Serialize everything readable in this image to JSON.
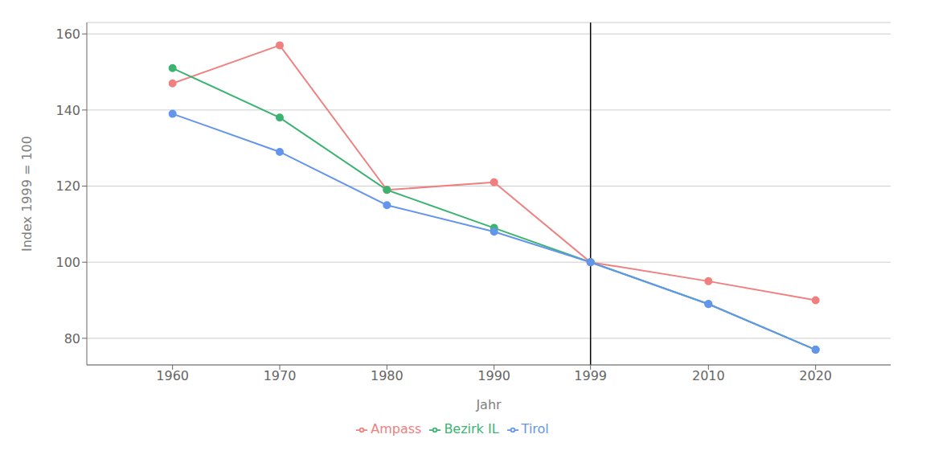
{
  "chart_data": {
    "type": "line",
    "x": [
      1960,
      1970,
      1980,
      1990,
      1999,
      2010,
      2020
    ],
    "series": [
      {
        "name": "Ampass",
        "color": "#F08080",
        "values": [
          147,
          157,
          119,
          121,
          100,
          95,
          90
        ]
      },
      {
        "name": "Bezirk IL",
        "color": "#3CB371",
        "values": [
          151,
          138,
          119,
          109,
          100,
          89,
          77
        ]
      },
      {
        "name": "Tirol",
        "color": "#6495ED",
        "values": [
          139,
          129,
          115,
          108,
          100,
          89,
          77
        ]
      }
    ],
    "xlabel": "Jahr",
    "ylabel": "Index 1999 = 100",
    "xlim": [
      1952,
      2027
    ],
    "xticks": [
      1960,
      1970,
      1980,
      1990,
      1999,
      2010,
      2020
    ],
    "ylim": [
      73,
      163
    ],
    "yticks": [
      80,
      100,
      120,
      140,
      160
    ],
    "vline": 1999,
    "grid": "y",
    "legend": "bottom",
    "marker": "circle"
  }
}
